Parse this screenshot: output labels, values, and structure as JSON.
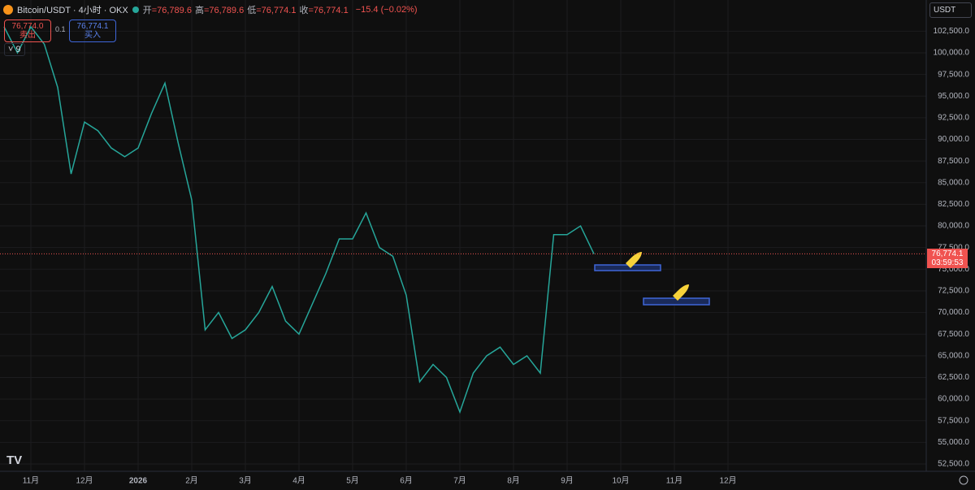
{
  "header": {
    "symbol": "Bitcoin/USDT · 4小时 · OKX",
    "ohlc": [
      {
        "label": "开",
        "value": "=76,789.6"
      },
      {
        "label": "高",
        "value": "=76,789.6"
      },
      {
        "label": "低",
        "value": "=76,774.1"
      },
      {
        "label": "收",
        "value": "=76,774.1"
      }
    ],
    "change": "−15.4 (−0.02%)"
  },
  "trade": {
    "sell_price": "76,774.0",
    "sell": "卖出",
    "qty": "0.1",
    "buy_price": "76,774.1",
    "buy": "买入"
  },
  "indicator_count": "9",
  "currency": "USDT",
  "price_tag": {
    "label": "76,774.1",
    "countdown": "03:59:53"
  },
  "chart_data": {
    "type": "line",
    "color": "#26a69a",
    "grid": true,
    "categories": [
      null,
      null,
      "11月",
      null,
      null,
      null,
      "12月",
      null,
      null,
      null,
      "2026",
      null,
      null,
      null,
      "2月",
      null,
      null,
      null,
      "3月",
      null,
      null,
      null,
      "4月",
      null,
      null,
      null,
      "5月",
      null,
      null,
      null,
      "6月",
      null,
      null,
      null,
      "7月",
      null,
      null,
      null,
      "8月",
      null,
      null,
      null,
      "9月",
      null,
      null,
      null,
      "10月",
      null,
      null,
      null,
      "11月",
      null,
      null,
      null,
      "12月",
      null,
      null,
      null,
      null,
      null,
      null,
      null,
      null,
      null,
      null,
      null,
      null,
      null,
      null
    ],
    "series": [
      {
        "name": "BTC/USDT",
        "color": "#26a69a",
        "values": [
          103000,
          100000,
          103000,
          101000,
          96000,
          86000,
          92000,
          91000,
          89000,
          88000,
          89000,
          93000,
          96500,
          89500,
          83000,
          68000,
          70000,
          67000,
          68000,
          70000,
          73000,
          69000,
          67500,
          71000,
          74500,
          78500,
          78500,
          81500,
          77500,
          76500,
          72000,
          62000,
          64000,
          62500,
          58500,
          63000,
          65000,
          66000,
          64000,
          65000,
          63000,
          79000,
          79000,
          80000,
          76774.1,
          null,
          null,
          null,
          null,
          null,
          null,
          null,
          null,
          null,
          null,
          null,
          null,
          null,
          null,
          null,
          null,
          null,
          null,
          null,
          null,
          null,
          null,
          null,
          null
        ]
      }
    ],
    "ylim": [
      51655,
      106100
    ],
    "yticks": [
      {
        "value": 102500,
        "label": "102,500.0"
      },
      {
        "value": 100000,
        "label": "100,000.0"
      },
      {
        "value": 97500,
        "label": "97,500.0"
      },
      {
        "value": 95000,
        "label": "95,000.0"
      },
      {
        "value": 92500,
        "label": "92,500.0"
      },
      {
        "value": 90000,
        "label": "90,000.0"
      },
      {
        "value": 87500,
        "label": "87,500.0"
      },
      {
        "value": 85000,
        "label": "85,000.0"
      },
      {
        "value": 82500,
        "label": "82,500.0"
      },
      {
        "value": 80000,
        "label": "80,000.0"
      },
      {
        "value": 77500,
        "label": "77,500.0"
      },
      {
        "value": 75000,
        "label": "75,000.0"
      },
      {
        "value": 72500,
        "label": "72,500.0"
      },
      {
        "value": 70000,
        "label": "70,000.0"
      },
      {
        "value": 67500,
        "label": "67,500.0"
      },
      {
        "value": 65000,
        "label": "65,000.0"
      },
      {
        "value": 62500,
        "label": "62,500.0"
      },
      {
        "value": 60000,
        "label": "60,000.0"
      },
      {
        "value": 57500,
        "label": "57,500.0"
      },
      {
        "value": 55000,
        "label": "55,000.0"
      },
      {
        "value": 52500,
        "label": "52,500.0"
      }
    ]
  }
}
